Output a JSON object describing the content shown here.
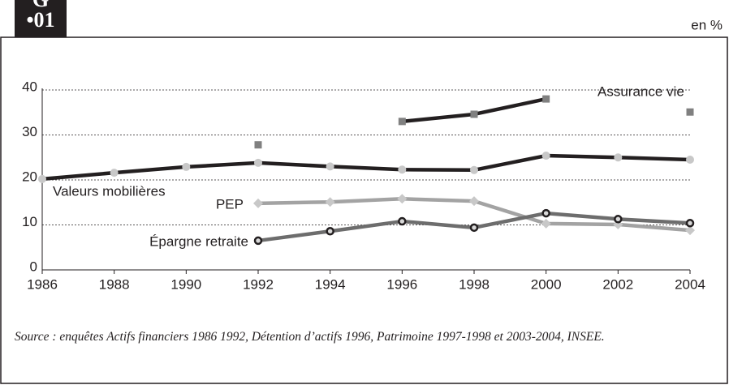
{
  "badge": {
    "letter": "G",
    "number": "•01"
  },
  "chart_data": {
    "type": "line",
    "ylabel": "en %",
    "x": [
      1986,
      1988,
      1990,
      1992,
      1994,
      1996,
      1998,
      2000,
      2002,
      2004
    ],
    "xlim": [
      1986,
      2004
    ],
    "xticks": [
      1986,
      1988,
      1990,
      1992,
      1994,
      1996,
      1998,
      2000,
      2002,
      2004
    ],
    "ylim": [
      0,
      40
    ],
    "yticks": [
      0,
      10,
      20,
      30,
      40
    ],
    "grid": true,
    "series": [
      {
        "name": "Assurance vie",
        "color": "#231f20",
        "marker": "square",
        "marker_color": "#808080",
        "values": [
          null,
          null,
          null,
          27.8,
          null,
          33.0,
          34.6,
          38.0,
          null,
          35.1
        ]
      },
      {
        "name": "Valeurs mobilières",
        "color": "#231f20",
        "marker": "circle",
        "marker_color": "#c8c8c8",
        "values": [
          20.2,
          21.6,
          22.9,
          23.8,
          23.0,
          22.3,
          22.2,
          25.4,
          25.0,
          24.5
        ]
      },
      {
        "name": "PEP",
        "color": "#a3a3a3",
        "marker": "diamond",
        "marker_color": "#c8c8c8",
        "values": [
          null,
          null,
          null,
          14.8,
          15.1,
          15.8,
          15.3,
          10.3,
          10.1,
          8.8
        ]
      },
      {
        "name": "Épargne retraite",
        "color": "#6d6d6d",
        "marker": "open-circle",
        "marker_color": "#231f20",
        "values": [
          null,
          null,
          null,
          6.5,
          8.6,
          10.8,
          9.4,
          12.6,
          11.3,
          10.4
        ]
      }
    ],
    "source": "Source : enquêtes Actifs financiers 1986 1992, Détention d’actifs 1996, Patrimoine 1997-1998 et 2003-2004, INSEE."
  }
}
